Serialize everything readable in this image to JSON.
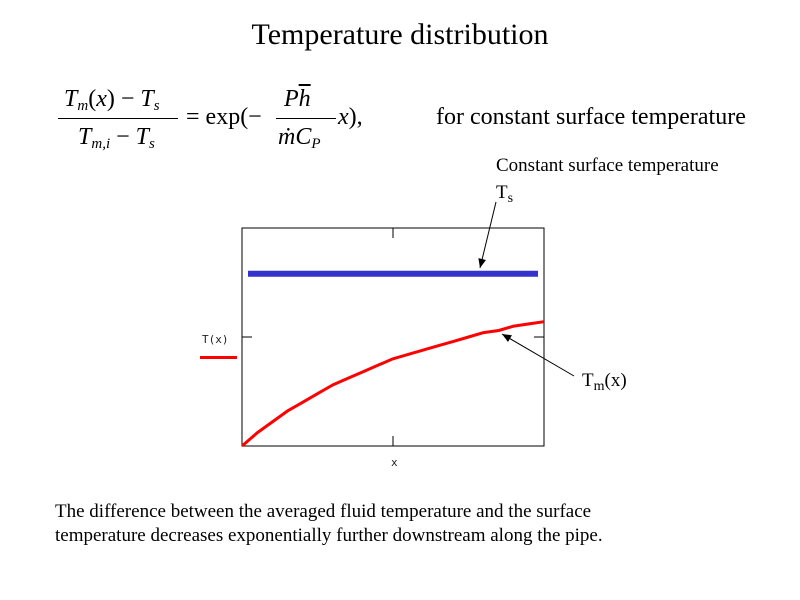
{
  "title": "Temperature distribution",
  "equation": {
    "lhs_numerator": "T_m(x) − T_s",
    "lhs_denominator": "T_m,i − T_s",
    "equals_exp": "= exp(−",
    "rhs_numerator": "Ph̄",
    "rhs_denominator": "ṁC_P",
    "rhs_tail": "x),",
    "condition": "for constant surface temperature"
  },
  "annotations": {
    "surface_line1": "Constant surface temperature",
    "surface_line2": "T",
    "surface_sub": "s",
    "fluid_main": "T",
    "fluid_sub": "m",
    "fluid_arg": "(x)"
  },
  "caption_line1": "The difference between the averaged fluid temperature and the surface",
  "caption_line2": "temperature decreases exponentially further downstream along the pipe.",
  "colors": {
    "surface": "#3333cc",
    "fluid": "#ff0000",
    "frame": "#000000"
  },
  "chart_data": {
    "type": "line",
    "xlabel": "x",
    "ylabel": "T(x)",
    "xlim": [
      0,
      1
    ],
    "ylim": [
      0,
      1
    ],
    "grid": false,
    "series": [
      {
        "key": "surface",
        "x": [
          0.02,
          0.98
        ],
        "y": [
          0.79,
          0.79
        ]
      },
      {
        "key": "fluid",
        "x": [
          0.0,
          0.05,
          0.1,
          0.15,
          0.2,
          0.25,
          0.3,
          0.35,
          0.4,
          0.45,
          0.5,
          0.55,
          0.6,
          0.65,
          0.7,
          0.75,
          0.8,
          0.85,
          0.9,
          0.95,
          1.0
        ],
        "y": [
          0.0,
          0.06,
          0.11,
          0.16,
          0.2,
          0.24,
          0.28,
          0.31,
          0.34,
          0.37,
          0.4,
          0.42,
          0.44,
          0.46,
          0.48,
          0.5,
          0.52,
          0.53,
          0.55,
          0.56,
          0.57
        ]
      }
    ]
  }
}
